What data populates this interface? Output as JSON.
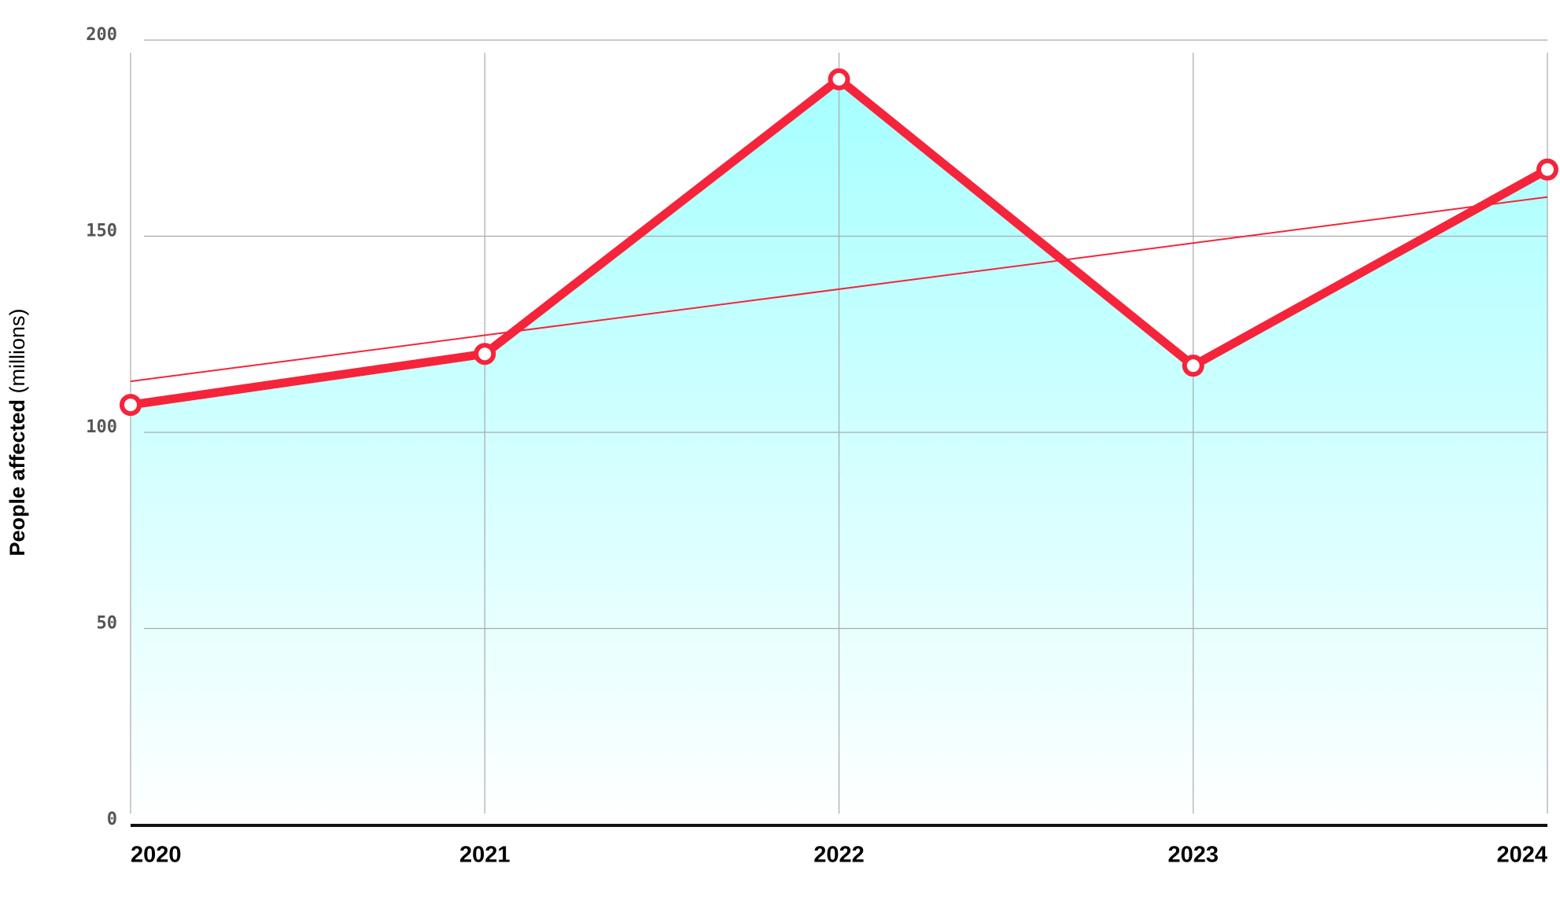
{
  "chart_data": {
    "type": "area",
    "ylabel": {
      "main": "People affected",
      "unit": "(millions)"
    },
    "categories": [
      "2020",
      "2021",
      "2022",
      "2023",
      "2024"
    ],
    "series": [
      {
        "name": "People affected",
        "color": "#f5243a",
        "values": [
          107,
          120,
          190,
          117,
          167
        ]
      }
    ],
    "area_color": "#a6ffff",
    "trend": {
      "color": "#f5243a",
      "start": 113,
      "end": 160
    },
    "ylim": [
      0,
      200
    ],
    "yticks": [
      0,
      50,
      100,
      150,
      200
    ],
    "grid": true
  }
}
